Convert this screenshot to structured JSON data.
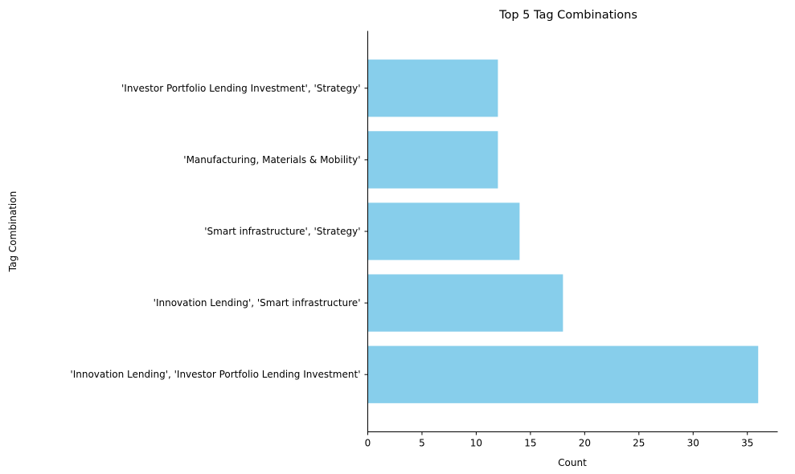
{
  "chart_data": {
    "type": "bar",
    "orientation": "horizontal",
    "title": "Top 5 Tag Combinations",
    "xlabel": "Count",
    "ylabel": "Tag Combination",
    "categories": [
      "'Innovation Lending', 'Investor Portfolio Lending Investment'",
      "'Innovation Lending', 'Smart infrastructure'",
      "'Smart infrastructure', 'Strategy'",
      "'Manufacturing, Materials & Mobility'",
      "'Investor Portfolio Lending Investment', 'Strategy'"
    ],
    "values": [
      36,
      18,
      14,
      12,
      12
    ],
    "xlim": [
      0,
      37.8
    ],
    "xticks": [
      0,
      5,
      10,
      15,
      20,
      25,
      30,
      35
    ],
    "bar_color": "#87CEEB",
    "grid": false,
    "legend": "none"
  }
}
